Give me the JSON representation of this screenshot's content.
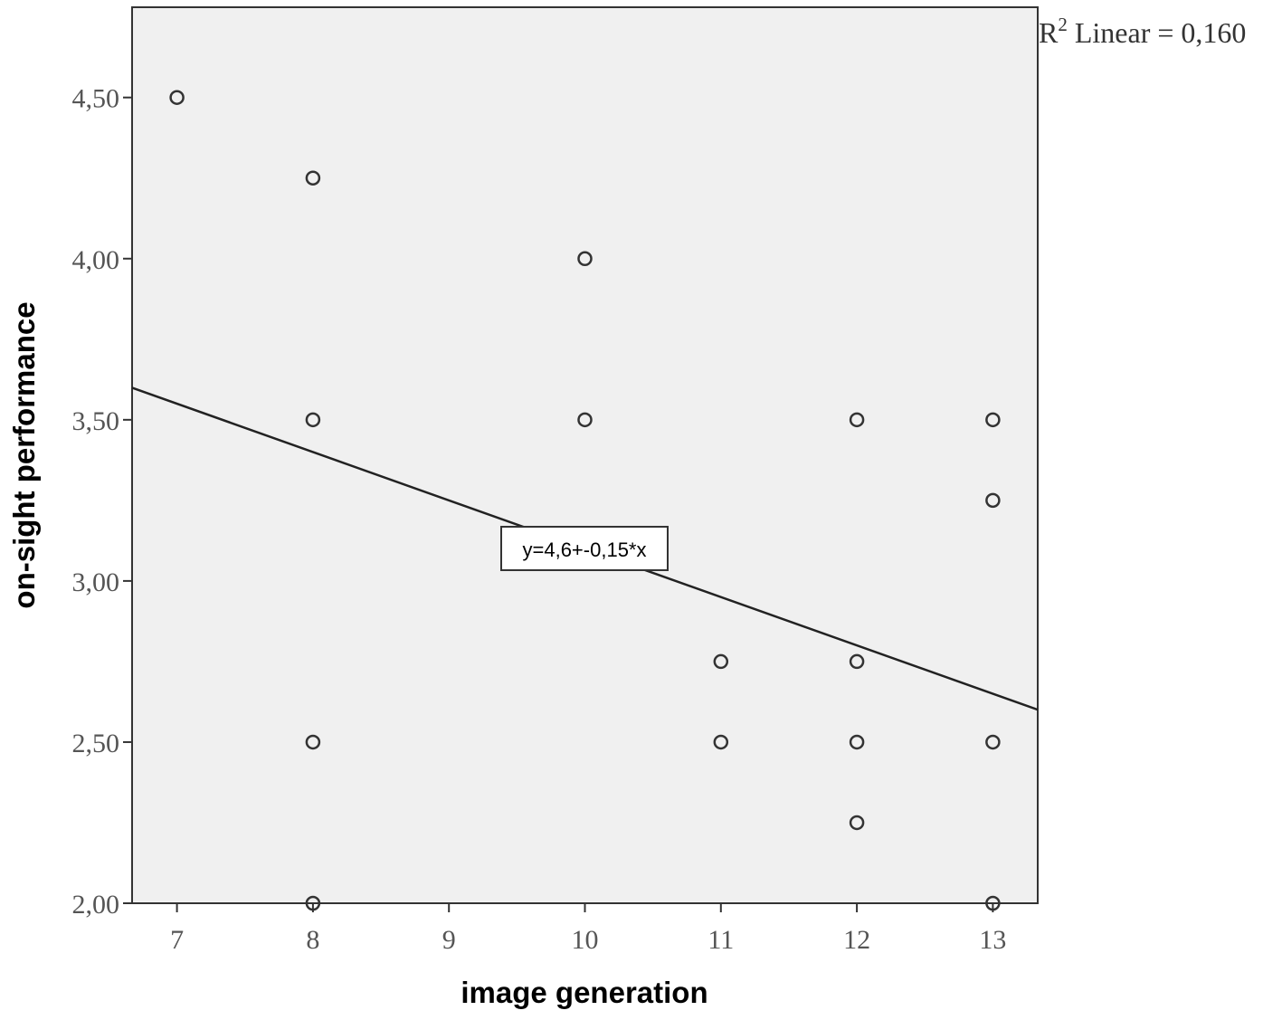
{
  "chart_data": {
    "type": "scatter",
    "title": "",
    "xlabel": "image generation",
    "ylabel": "on-sight performance",
    "xlim": [
      6.67,
      13.33
    ],
    "ylim": [
      2.0,
      4.78
    ],
    "x_ticks": [
      7,
      8,
      9,
      10,
      11,
      12,
      13
    ],
    "x_tick_labels": [
      "7",
      "8",
      "9",
      "10",
      "11",
      "12",
      "13"
    ],
    "y_ticks": [
      2.0,
      2.5,
      3.0,
      3.5,
      4.0,
      4.5
    ],
    "y_tick_labels": [
      "2,00",
      "2,50",
      "3,00",
      "3,50",
      "4,00",
      "4,50"
    ],
    "grid": false,
    "points": [
      {
        "x": 7,
        "y": 4.5
      },
      {
        "x": 8,
        "y": 4.25
      },
      {
        "x": 8,
        "y": 3.5
      },
      {
        "x": 8,
        "y": 2.5
      },
      {
        "x": 8,
        "y": 2.0
      },
      {
        "x": 10,
        "y": 4.0
      },
      {
        "x": 10,
        "y": 3.5
      },
      {
        "x": 11,
        "y": 2.75
      },
      {
        "x": 11,
        "y": 2.5
      },
      {
        "x": 12,
        "y": 3.5
      },
      {
        "x": 12,
        "y": 2.75
      },
      {
        "x": 12,
        "y": 2.5
      },
      {
        "x": 12,
        "y": 2.25
      },
      {
        "x": 13,
        "y": 3.5
      },
      {
        "x": 13,
        "y": 3.25
      },
      {
        "x": 13,
        "y": 2.5
      },
      {
        "x": 13,
        "y": 2.0
      }
    ],
    "fit_line": {
      "intercept": 4.6,
      "slope": -0.15
    },
    "fit_label": "y=4,6+-0,15*x",
    "r2_prefix": "R",
    "r2_sup": "2",
    "r2_text": " Linear = 0,160",
    "colors": {
      "plot_background": "#f0f0f0",
      "frame": "#333333",
      "marker_stroke": "#333333",
      "fit_line": "#222222"
    }
  }
}
